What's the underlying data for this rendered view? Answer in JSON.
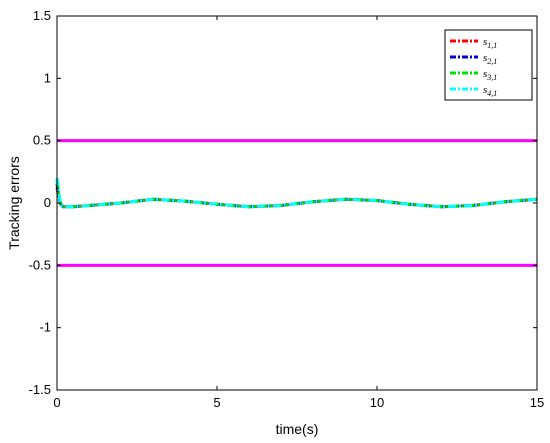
{
  "chart_data": {
    "type": "line",
    "title": "",
    "xlabel": "time(s)",
    "ylabel": "Tracking errors",
    "xlim": [
      0,
      15
    ],
    "ylim": [
      -1.5,
      1.5
    ],
    "xticks": [
      0,
      5,
      10,
      15
    ],
    "xtick_labels": [
      "0",
      "5",
      "10",
      "15"
    ],
    "yticks": [
      1.5,
      1,
      0.5,
      0,
      -0.5,
      -1,
      -1.5
    ],
    "ytick_labels": [
      "1.5",
      "1",
      "0.5",
      "0",
      "-0.5",
      "-1",
      "-1.5"
    ],
    "grid": false,
    "legend_position": "top-right",
    "series": [
      {
        "name": "s1,1",
        "base": "s",
        "sub": "1,1",
        "color": "#ff0000",
        "style": "dash-dot",
        "x": [
          0,
          0.05,
          0.1,
          0.15,
          0.2,
          0.3,
          0.5,
          1,
          1.5,
          2,
          3,
          4,
          5,
          6,
          7,
          8,
          9,
          10,
          11,
          12,
          13,
          14,
          15
        ],
        "y": [
          0.12,
          0.05,
          0.0,
          -0.02,
          -0.03,
          -0.03,
          -0.03,
          -0.02,
          -0.01,
          0.0,
          0.03,
          0.015,
          -0.01,
          -0.03,
          -0.02,
          0.01,
          0.03,
          0.02,
          -0.01,
          -0.03,
          -0.02,
          0.01,
          0.03
        ]
      },
      {
        "name": "s2,1",
        "base": "s",
        "sub": "2,1",
        "color": "#0000cd",
        "style": "dash-dot",
        "x": [
          0,
          0.05,
          0.1,
          0.15,
          0.2,
          0.3,
          0.5,
          1,
          1.5,
          2,
          3,
          4,
          5,
          6,
          7,
          8,
          9,
          10,
          11,
          12,
          13,
          14,
          15
        ],
        "y": [
          0.15,
          0.06,
          0.0,
          -0.02,
          -0.03,
          -0.03,
          -0.03,
          -0.02,
          -0.01,
          0.0,
          0.03,
          0.015,
          -0.01,
          -0.03,
          -0.02,
          0.01,
          0.03,
          0.02,
          -0.01,
          -0.03,
          -0.02,
          0.01,
          0.03
        ]
      },
      {
        "name": "s3,1",
        "base": "s",
        "sub": "3,1",
        "color": "#00e000",
        "style": "dash-dot",
        "x": [
          0,
          0.05,
          0.1,
          0.15,
          0.2,
          0.3,
          0.5,
          1,
          1.5,
          2,
          3,
          4,
          5,
          6,
          7,
          8,
          9,
          10,
          11,
          12,
          13,
          14,
          15
        ],
        "y": [
          0.18,
          0.08,
          0.01,
          -0.02,
          -0.03,
          -0.03,
          -0.03,
          -0.02,
          -0.01,
          0.0,
          0.03,
          0.015,
          -0.01,
          -0.03,
          -0.02,
          0.01,
          0.03,
          0.02,
          -0.01,
          -0.03,
          -0.02,
          0.01,
          0.03
        ]
      },
      {
        "name": "s4,1",
        "base": "s",
        "sub": "4,1",
        "color": "#00ffff",
        "style": "dash-dot",
        "x": [
          0,
          0.05,
          0.1,
          0.15,
          0.2,
          0.3,
          0.5,
          1,
          1.5,
          2,
          3,
          4,
          5,
          6,
          7,
          8,
          9,
          10,
          11,
          12,
          13,
          14,
          15
        ],
        "y": [
          0.2,
          0.1,
          0.01,
          -0.02,
          -0.03,
          -0.03,
          -0.03,
          -0.02,
          -0.01,
          0.0,
          0.03,
          0.015,
          -0.01,
          -0.03,
          -0.02,
          0.01,
          0.03,
          0.02,
          -0.01,
          -0.03,
          -0.02,
          0.01,
          0.03
        ]
      }
    ],
    "bounds": [
      {
        "y": 0.5,
        "color": "#ff00ff"
      },
      {
        "y": -0.5,
        "color": "#ff00ff"
      }
    ]
  }
}
